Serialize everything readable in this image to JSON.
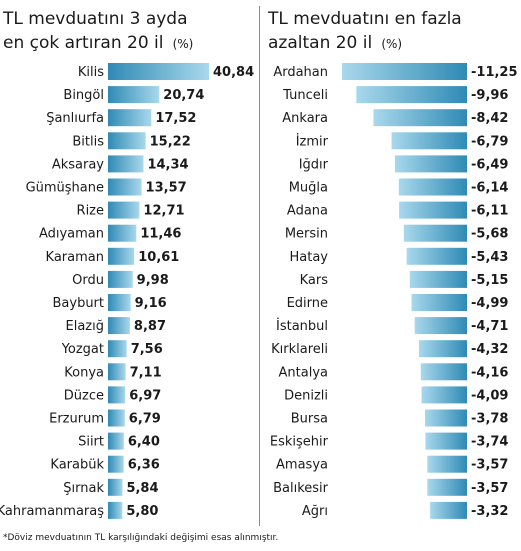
{
  "chart_data": [
    {
      "type": "bar",
      "orientation": "horizontal",
      "title_line1": "TL mevduatını 3 ayda",
      "title_line2": "en çok artıran 20 il",
      "unit": "(%)",
      "categories": [
        "Kilis",
        "Bingöl",
        "Şanlıurfa",
        "Bitlis",
        "Aksaray",
        "Gümüşhane",
        "Rize",
        "Adıyaman",
        "Karaman",
        "Ordu",
        "Bayburt",
        "Elazığ",
        "Yozgat",
        "Konya",
        "Düzce",
        "Erzurum",
        "Siirt",
        "Karabük",
        "Şırnak",
        "Kahramanmaraş"
      ],
      "labels": [
        "40,84",
        "20,74",
        "17,52",
        "15,22",
        "14,34",
        "13,57",
        "12,71",
        "11,46",
        "10,61",
        "9,98",
        "9,16",
        "8,87",
        "7,56",
        "7,11",
        "6,97",
        "6,79",
        "6,40",
        "6,36",
        "5,84",
        "5,80"
      ],
      "values": [
        40.84,
        20.74,
        17.52,
        15.22,
        14.34,
        13.57,
        12.71,
        11.46,
        10.61,
        9.98,
        9.16,
        8.87,
        7.56,
        7.11,
        6.97,
        6.79,
        6.4,
        6.36,
        5.84,
        5.8
      ],
      "xlim": [
        0,
        40.84
      ]
    },
    {
      "type": "bar",
      "orientation": "horizontal",
      "title_line1": "TL mevduatını en fazla",
      "title_line2": "azaltan 20 il",
      "unit": "(%)",
      "categories": [
        "Ardahan",
        "Tunceli",
        "Ankara",
        "İzmir",
        "Iğdır",
        "Muğla",
        "Adana",
        "Mersin",
        "Hatay",
        "Kars",
        "Edirne",
        "İstanbul",
        "Kırklareli",
        "Antalya",
        "Denizli",
        "Bursa",
        "Eskişehir",
        "Amasya",
        "Balıkesir",
        "Ağrı"
      ],
      "labels": [
        "-11,25",
        "-9,96",
        "-8,42",
        "-6,79",
        "-6,49",
        "-6,14",
        "-6,11",
        "-5,68",
        "-5,43",
        "-5,15",
        "-4,99",
        "-4,71",
        "-4,32",
        "-4,16",
        "-4,09",
        "-3,78",
        "-3,74",
        "-3,57",
        "-3,57",
        "-3,32"
      ],
      "values": [
        -11.25,
        -9.96,
        -8.42,
        -6.79,
        -6.49,
        -6.14,
        -6.11,
        -5.68,
        -5.43,
        -5.15,
        -4.99,
        -4.71,
        -4.32,
        -4.16,
        -4.09,
        -3.78,
        -3.74,
        -3.57,
        -3.57,
        -3.32
      ],
      "xlim": [
        -11.25,
        0
      ]
    }
  ],
  "footnote": "*Döviz mevduatının TL karşılığındaki değişimi esas alınmıştır.",
  "colors": {
    "bar_light": "#a9d8ec",
    "bar_dark": "#2f8ab5",
    "text": "#1a1a1a"
  }
}
